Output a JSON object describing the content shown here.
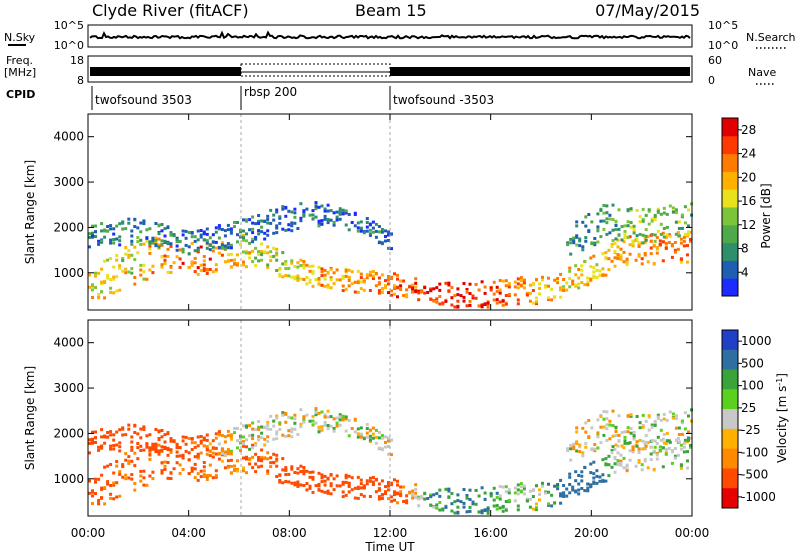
{
  "header": {
    "station": "Clyde River (fitACF)",
    "beam": "Beam 15",
    "date": "07/May/2015"
  },
  "strip_nsky": {
    "left_label": "N.Sky",
    "left_ticks": [
      "10^5",
      "10^0"
    ],
    "right_label": "N.Search",
    "right_ticks": [
      "10^5",
      "10^0"
    ]
  },
  "strip_freq": {
    "left_label_line1": "Freq.",
    "left_label_line2": "[MHz]",
    "left_ticks": [
      "18",
      "8"
    ],
    "right_label": "Nave",
    "right_ticks": [
      "60",
      "0"
    ]
  },
  "cpid": {
    "label": "CPID",
    "segments": [
      {
        "name": "twofsound 3503",
        "start_h": 0,
        "end_h": 6
      },
      {
        "name": "rbsp 200",
        "start_h": 6,
        "end_h": 12
      },
      {
        "name": "twofsound -3503",
        "start_h": 12,
        "end_h": 24
      }
    ]
  },
  "colors": {
    "power_scale": [
      "#1c2bff",
      "#1e5fb4",
      "#2f8f6a",
      "#4fa84a",
      "#7cc43a",
      "#e8e11c",
      "#ffb000",
      "#ff7a00",
      "#ff3a00",
      "#e00000"
    ],
    "velocity_scale": [
      "#e60000",
      "#ff4a00",
      "#ff8a00",
      "#ffb000",
      "#c8c8c8",
      "#5ad11e",
      "#3aa33a",
      "#2e6ea0",
      "#2040c8"
    ],
    "grey_ground": "#c8c8c8"
  },
  "chart_data": [
    {
      "type": "heatmap",
      "panel": "power",
      "ylabel": "Slant Range [km]",
      "xlabel": "Time UT",
      "x_ticks": [
        "00:00",
        "04:00",
        "08:00",
        "12:00",
        "16:00",
        "20:00",
        "00:00"
      ],
      "x_range_hours": [
        0,
        24
      ],
      "y_ticks": [
        1000,
        2000,
        3000,
        4000
      ],
      "y_range_km": [
        180,
        4500
      ],
      "colorbar_label": "Power [dB]",
      "colorbar_ticks": [
        4,
        8,
        12,
        16,
        20,
        24,
        28
      ],
      "colorbar_range": [
        0,
        30
      ],
      "bands": [
        {
          "t": [
            0,
            1.5,
            3,
            4.5,
            6,
            7.5,
            9,
            10.5,
            12,
            13.5,
            15,
            16.5,
            18,
            19.5,
            21,
            22.5,
            24
          ],
          "center_km": [
            700,
            1150,
            1450,
            1300,
            1550,
            1250,
            950,
            850,
            780,
            620,
            500,
            620,
            650,
            950,
            1450,
            1550,
            1600
          ],
          "width_km": [
            400,
            500,
            400,
            350,
            350,
            300,
            250,
            250,
            250,
            250,
            300,
            300,
            300,
            300,
            350,
            350,
            350
          ],
          "level_db": [
            18,
            16,
            22,
            24,
            18,
            14,
            20,
            22,
            24,
            26,
            28,
            24,
            20,
            18,
            20,
            22,
            22
          ]
        },
        {
          "t": [
            0,
            2,
            4,
            6,
            8,
            9.5,
            11,
            12
          ],
          "center_km": [
            1850,
            1950,
            1700,
            1900,
            2250,
            2350,
            2050,
            1700
          ],
          "width_km": [
            250,
            300,
            250,
            300,
            300,
            250,
            200,
            200
          ],
          "level_db": [
            6,
            8,
            6,
            6,
            5,
            5,
            5,
            6
          ]
        },
        {
          "t": [
            19,
            20.5,
            22,
            24
          ],
          "center_km": [
            1700,
            2150,
            2050,
            2250
          ],
          "width_km": [
            350,
            400,
            400,
            350
          ],
          "level_db": [
            8,
            10,
            12,
            12
          ]
        }
      ]
    },
    {
      "type": "heatmap",
      "panel": "velocity",
      "ylabel": "Slant Range [km]",
      "xlabel": "Time UT",
      "x_ticks": [
        "00:00",
        "04:00",
        "08:00",
        "12:00",
        "16:00",
        "20:00",
        "00:00"
      ],
      "x_range_hours": [
        0,
        24
      ],
      "y_ticks": [
        1000,
        2000,
        3000,
        4000
      ],
      "y_range_km": [
        180,
        4500
      ],
      "colorbar_label": "Velocity [m s^-1]",
      "colorbar_ticks": [
        1000,
        500,
        100,
        25,
        -25,
        -100,
        -500,
        -1000
      ],
      "bands": [
        {
          "t": [
            0,
            1.5,
            3,
            4.5,
            6,
            7.5,
            9,
            10.5,
            12,
            13.5,
            15,
            16.5,
            18,
            19.5,
            21,
            22.5,
            24
          ],
          "center_km": [
            700,
            1150,
            1450,
            1300,
            1550,
            1250,
            950,
            850,
            780,
            620,
            500,
            620,
            650,
            950,
            1450,
            1550,
            1600
          ],
          "width_km": [
            400,
            500,
            400,
            350,
            350,
            300,
            250,
            250,
            250,
            250,
            300,
            300,
            300,
            300,
            350,
            350,
            350
          ],
          "velocity": [
            -150,
            -120,
            -120,
            -100,
            -80,
            -150,
            -200,
            -180,
            -150,
            60,
            150,
            40,
            20,
            300,
            0,
            0,
            20
          ]
        },
        {
          "t": [
            0,
            2,
            4,
            6,
            8,
            9.5,
            11,
            12
          ],
          "center_km": [
            1850,
            1950,
            1700,
            1900,
            2250,
            2350,
            2050,
            1700
          ],
          "width_km": [
            250,
            300,
            250,
            300,
            300,
            250,
            200,
            200
          ],
          "velocity": [
            -400,
            -350,
            -150,
            0,
            0,
            0,
            0,
            0
          ]
        },
        {
          "t": [
            19,
            20.5,
            22,
            24
          ],
          "center_km": [
            1700,
            2150,
            2050,
            2250
          ],
          "width_km": [
            350,
            400,
            400,
            350
          ],
          "velocity": [
            0,
            0,
            0,
            10
          ]
        }
      ]
    }
  ]
}
